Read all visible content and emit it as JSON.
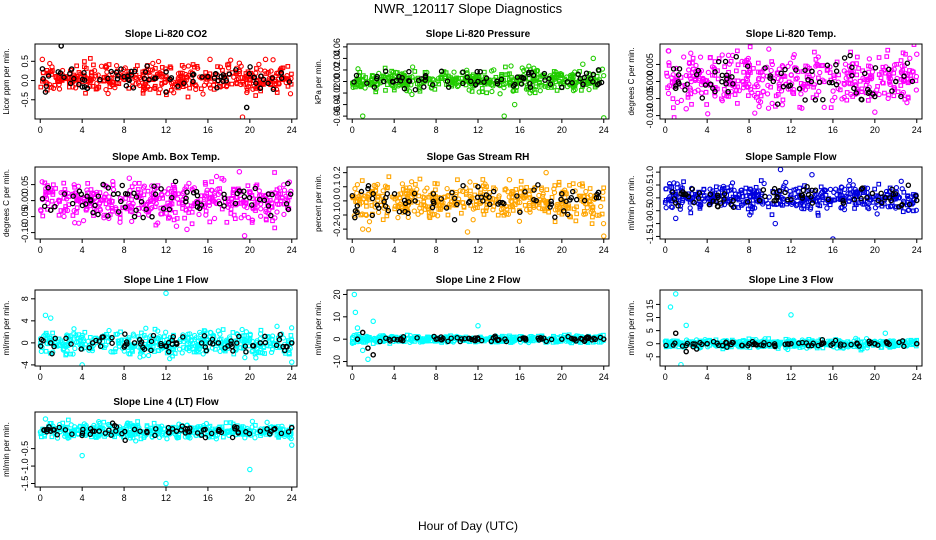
{
  "figure": {
    "title": "NWR_120117  Slope Diagnostics",
    "xlabel": "Hour of Day (UTC)"
  },
  "chart_data": [
    {
      "type": "scatter",
      "title": "Slope Li-820 CO2",
      "ylabel": "Licor ppm per min.",
      "color": "#ff0000",
      "xlim": [
        -0.5,
        24.5
      ],
      "xticks": [
        0,
        4,
        8,
        12,
        16,
        20,
        24
      ],
      "ylim": [
        -1.0,
        0.95
      ],
      "yticks": [
        -0.5,
        0.0,
        0.5
      ],
      "ytick_labels": [
        "-0.5",
        "0.0",
        "0.5"
      ],
      "center": 0.05,
      "spread": 0.18,
      "ref_points": [
        [
          2.0,
          0.9
        ],
        [
          19.7,
          -0.7
        ],
        [
          0.5,
          -0.3
        ],
        [
          3.0,
          0.3
        ],
        [
          4.5,
          -0.2
        ],
        [
          8.0,
          0.1
        ],
        [
          12.0,
          -0.3
        ],
        [
          16.0,
          0.1
        ],
        [
          21.0,
          -0.2
        ],
        [
          23.0,
          0.2
        ]
      ],
      "outliers": [
        [
          19.3,
          -0.95
        ],
        [
          19.0,
          0.45
        ],
        [
          21.5,
          0.55
        ],
        [
          0.2,
          0.55
        ],
        [
          16.2,
          0.55
        ]
      ]
    },
    {
      "type": "scatter",
      "title": "Slope Li-820 Pressure",
      "ylabel": "kPa per min.",
      "color": "#22cc00",
      "xlim": [
        -0.5,
        24.5
      ],
      "xticks": [
        0,
        4,
        8,
        12,
        16,
        20,
        24
      ],
      "ylim": [
        -0.065,
        0.065
      ],
      "yticks": [
        -0.06,
        -0.04,
        -0.02,
        0.0,
        0.02,
        0.04,
        0.06
      ],
      "ytick_labels": [
        "-0.06",
        "-0.04",
        "-0.02",
        "0.00",
        "0.02",
        "0.04",
        "0.06"
      ],
      "center": 0.002,
      "spread": 0.01,
      "ref_points": [
        [
          3.0,
          0.0
        ],
        [
          7.0,
          0.01
        ],
        [
          12.0,
          0.0
        ],
        [
          17.0,
          -0.01
        ],
        [
          23.5,
          0.02
        ],
        [
          20.0,
          -0.01
        ]
      ],
      "outliers": [
        [
          1.0,
          -0.06
        ],
        [
          14.5,
          -0.06
        ],
        [
          24.0,
          -0.063
        ],
        [
          23.0,
          0.04
        ],
        [
          22.0,
          0.03
        ],
        [
          15.5,
          -0.04
        ],
        [
          13.5,
          0.02
        ]
      ]
    },
    {
      "type": "scatter",
      "title": "Slope Li-820 Temp.",
      "ylabel": "degrees C per min.",
      "color": "#ff00ff",
      "xlim": [
        -0.5,
        24.5
      ],
      "xticks": [
        0,
        4,
        8,
        12,
        16,
        20,
        24
      ],
      "ylim": [
        -0.011,
        0.011
      ],
      "yticks": [
        -0.01,
        -0.005,
        0.0,
        0.005
      ],
      "ytick_labels": [
        "-0.010",
        "-0.005",
        "0.000",
        "0.005"
      ],
      "center": 0.0006,
      "spread": 0.0038,
      "ref_points": [
        [
          1.0,
          -0.002
        ],
        [
          3.0,
          0.002
        ],
        [
          6.0,
          -0.003
        ],
        [
          10.0,
          0.001
        ],
        [
          14.0,
          0.003
        ],
        [
          18.0,
          -0.002
        ],
        [
          22.0,
          0.0
        ]
      ],
      "outliers": [
        [
          0.3,
          0.009
        ],
        [
          24.0,
          0.008
        ],
        [
          20.0,
          -0.009
        ],
        [
          2.0,
          -0.008
        ]
      ]
    },
    {
      "type": "scatter",
      "title": "Slope Amb. Box Temp.",
      "ylabel": "degrees C per min.",
      "color": "#ff00ff",
      "xlim": [
        -0.5,
        24.5
      ],
      "xticks": [
        0,
        4,
        8,
        12,
        16,
        20,
        24
      ],
      "ylim": [
        -0.12,
        0.105
      ],
      "yticks": [
        -0.1,
        -0.05,
        0.0,
        0.05
      ],
      "ytick_labels": [
        "-0.10",
        "-0.05",
        "0.00",
        "0.05"
      ],
      "center": 0.0,
      "spread": 0.033,
      "ref_points": [
        [
          1.0,
          -0.03
        ],
        [
          6.0,
          0.05
        ],
        [
          9.0,
          -0.05
        ],
        [
          11.0,
          0.02
        ],
        [
          15.0,
          -0.02
        ],
        [
          19.0,
          0.03
        ],
        [
          23.5,
          -0.01
        ]
      ],
      "outliers": [
        [
          19.5,
          -0.11
        ],
        [
          19.0,
          0.09
        ],
        [
          14.0,
          -0.09
        ],
        [
          8.5,
          0.07
        ],
        [
          13.0,
          -0.08
        ]
      ]
    },
    {
      "type": "scatter",
      "title": "Slope Gas Stream RH",
      "ylabel": "percent per min.",
      "color": "#ffa500",
      "xlim": [
        -0.5,
        24.5
      ],
      "xticks": [
        0,
        4,
        8,
        12,
        16,
        20,
        24
      ],
      "ylim": [
        -0.27,
        0.24
      ],
      "yticks": [
        -0.2,
        -0.1,
        0.0,
        0.1,
        0.2
      ],
      "ytick_labels": [
        "-0.2",
        "-0.1",
        "0.0",
        "0.1",
        "0.2"
      ],
      "center": 0.0,
      "spread": 0.065,
      "ref_points": [
        [
          2.0,
          0.05
        ],
        [
          6.0,
          0.0
        ],
        [
          9.0,
          -0.05
        ],
        [
          12.0,
          0.1
        ],
        [
          16.0,
          -0.08
        ],
        [
          20.0,
          0.05
        ],
        [
          23.5,
          0.06
        ]
      ],
      "outliers": [
        [
          18.5,
          0.2
        ],
        [
          24.0,
          -0.25
        ],
        [
          15.0,
          0.15
        ],
        [
          1.0,
          -0.2
        ],
        [
          11.0,
          -0.22
        ]
      ]
    },
    {
      "type": "scatter",
      "title": "Slope Sample Flow",
      "ylabel": "ml/min per min.",
      "color": "#0000dd",
      "xlim": [
        -0.5,
        24.5
      ],
      "xticks": [
        0,
        4,
        8,
        12,
        16,
        20,
        24
      ],
      "ylim": [
        -1.6,
        1.2
      ],
      "yticks": [
        -1.5,
        -1.0,
        -0.5,
        0.0,
        0.5,
        1.0
      ],
      "ytick_labels": [
        "-1.5",
        "-1.0",
        "-0.5",
        "0.0",
        "0.5",
        "1.0"
      ],
      "center": 0.0,
      "spread": 0.24,
      "ref_points": [
        [
          1.0,
          -0.2
        ],
        [
          5.0,
          0.1
        ],
        [
          9.0,
          -0.1
        ],
        [
          13.0,
          0.1
        ],
        [
          17.0,
          -0.2
        ],
        [
          21.0,
          0.0
        ],
        [
          24.0,
          -0.1
        ]
      ],
      "outliers": [
        [
          11.0,
          1.1
        ],
        [
          20.0,
          1.3
        ],
        [
          16.0,
          -1.6
        ],
        [
          10.5,
          -1.0
        ],
        [
          1.0,
          -0.8
        ],
        [
          14.0,
          0.9
        ]
      ]
    },
    {
      "type": "scatter",
      "title": "Slope Line 1 Flow",
      "ylabel": "ml/min per min.",
      "color": "#00ffff",
      "xlim": [
        -0.5,
        24.5
      ],
      "xticks": [
        0,
        4,
        8,
        12,
        16,
        20,
        24
      ],
      "ylim": [
        -4.2,
        9.6
      ],
      "yticks": [
        -4,
        0,
        4,
        8
      ],
      "ytick_labels": [
        "-4",
        "0",
        "4",
        "8"
      ],
      "center": 0.0,
      "spread": 1.1,
      "ref_points": [
        [
          1.0,
          0.0
        ],
        [
          5.0,
          0.0
        ],
        [
          9.0,
          0.0
        ],
        [
          13.0,
          0.0
        ],
        [
          17.0,
          0.0
        ],
        [
          21.0,
          0.0
        ],
        [
          24.0,
          0.0
        ]
      ],
      "outliers": [
        [
          12.0,
          9.0
        ],
        [
          0.5,
          5.0
        ],
        [
          1.0,
          4.5
        ],
        [
          4.0,
          -4.0
        ],
        [
          24.0,
          -3.5
        ]
      ]
    },
    {
      "type": "scatter",
      "title": "Slope Line 2 Flow",
      "ylabel": "ml/min per min.",
      "color": "#00ffff",
      "xlim": [
        -0.5,
        24.5
      ],
      "xticks": [
        0,
        4,
        8,
        12,
        16,
        20,
        24
      ],
      "ylim": [
        -12.0,
        22.0
      ],
      "yticks": [
        -10,
        0,
        10,
        20
      ],
      "ytick_labels": [
        "-10",
        "0",
        "10",
        "20"
      ],
      "center": 0.0,
      "spread": 0.8,
      "ref_points": [
        [
          0.5,
          0.0
        ],
        [
          1.0,
          3.0
        ],
        [
          1.5,
          -4.0
        ],
        [
          2.0,
          -7.0
        ],
        [
          4.0,
          0.0
        ],
        [
          8.0,
          0.0
        ],
        [
          12.0,
          0.0
        ],
        [
          16.0,
          0.0
        ],
        [
          20.0,
          0.0
        ],
        [
          24.0,
          0.0
        ]
      ],
      "outliers": [
        [
          0.2,
          20.0
        ],
        [
          0.3,
          12.0
        ],
        [
          0.5,
          5.0
        ],
        [
          1.0,
          -5.0
        ],
        [
          1.5,
          -9.0
        ],
        [
          12.0,
          6.0
        ],
        [
          2.0,
          8.0
        ]
      ]
    },
    {
      "type": "scatter",
      "title": "Slope Line 3 Flow",
      "ylabel": "ml/min per min.",
      "color": "#00ffff",
      "xlim": [
        -0.5,
        24.5
      ],
      "xticks": [
        0,
        4,
        8,
        12,
        16,
        20,
        24
      ],
      "ylim": [
        -8.5,
        20.5
      ],
      "yticks": [
        -5,
        0,
        5,
        10,
        15
      ],
      "ytick_labels": [
        "-5",
        "0",
        "5",
        "10",
        "15"
      ],
      "center": 0.0,
      "spread": 0.8,
      "ref_points": [
        [
          1.0,
          4.0
        ],
        [
          2.0,
          -3.0
        ],
        [
          3.0,
          -2.0
        ],
        [
          4.0,
          0.0
        ],
        [
          8.0,
          0.0
        ],
        [
          12.0,
          0.0
        ],
        [
          16.0,
          0.0
        ],
        [
          20.0,
          0.0
        ],
        [
          24.0,
          0.0
        ]
      ],
      "outliers": [
        [
          1.0,
          19.0
        ],
        [
          0.5,
          14.0
        ],
        [
          12.0,
          11.0
        ],
        [
          1.5,
          -8.0
        ],
        [
          2.0,
          7.0
        ],
        [
          21.0,
          4.0
        ]
      ]
    },
    {
      "type": "scatter",
      "title": "Slope Line 4 (LT) Flow",
      "ylabel": "ml/min per min.",
      "color": "#00ffff",
      "xlim": [
        -0.5,
        24.5
      ],
      "xticks": [
        0,
        4,
        8,
        12,
        16,
        20,
        24
      ],
      "ylim": [
        -1.6,
        0.55
      ],
      "yticks": [
        -1.5,
        -1.0,
        -0.5
      ],
      "ytick_labels": [
        "-1.5",
        "-1.0",
        "-0.5"
      ],
      "center": 0.0,
      "spread": 0.11,
      "ref_points": [
        [
          1.0,
          0.0
        ],
        [
          5.0,
          0.0
        ],
        [
          9.0,
          0.05
        ],
        [
          13.0,
          0.0
        ],
        [
          17.0,
          0.0
        ],
        [
          21.0,
          0.0
        ],
        [
          24.0,
          0.1
        ]
      ],
      "outliers": [
        [
          12.0,
          -1.5
        ],
        [
          20.0,
          -1.1
        ],
        [
          4.0,
          -0.7
        ],
        [
          0.5,
          0.35
        ],
        [
          24.0,
          -0.4
        ]
      ]
    }
  ]
}
